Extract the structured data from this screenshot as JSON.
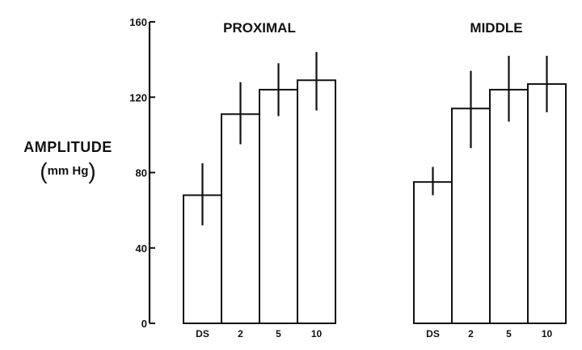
{
  "ylabel": {
    "title": "AMPLITUDE",
    "unit": "mm Hg",
    "open_paren": "(",
    "close_paren": ")"
  },
  "chart_data": {
    "type": "bar",
    "ylim": [
      0,
      160
    ],
    "yticks": [
      0,
      40,
      80,
      120,
      160
    ],
    "ylabel": "AMPLITUDE (mm Hg)",
    "grid": false,
    "panels": [
      {
        "title": "PROXIMAL",
        "categories": [
          "DS",
          "2",
          "5",
          "10"
        ],
        "values": [
          68,
          111,
          124,
          129
        ],
        "error_low": [
          52,
          95,
          110,
          113
        ],
        "error_high": [
          85,
          128,
          138,
          144
        ]
      },
      {
        "title": "MIDDLE",
        "categories": [
          "DS",
          "2",
          "5",
          "10"
        ],
        "values": [
          75,
          114,
          124,
          127
        ],
        "error_low": [
          68,
          93,
          107,
          112
        ],
        "error_high": [
          83,
          134,
          142,
          142
        ]
      }
    ]
  }
}
